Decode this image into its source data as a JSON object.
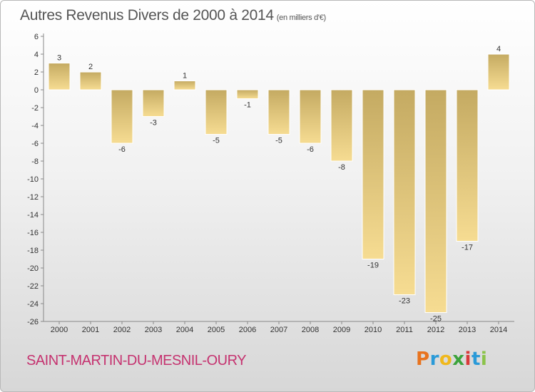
{
  "header": {
    "title": "Autres Revenus Divers de 2000 à 2014",
    "subtitle": "(en milliers d'€)"
  },
  "footer": {
    "commune": "SAINT-MARTIN-DU-MESNIL-OURY",
    "logo_letters": [
      "P",
      "r",
      "o",
      "x",
      "i",
      "t",
      "i"
    ],
    "logo_colors": [
      "#e8731e",
      "#2a9ad8",
      "#f0b81c",
      "#3ca33c",
      "#d93a3a",
      "#2a9ad8",
      "#8bc34a"
    ]
  },
  "chart_data": {
    "type": "bar",
    "title": "Autres Revenus Divers de 2000 à 2014",
    "xlabel": "",
    "ylabel": "",
    "categories": [
      "2000",
      "2001",
      "2002",
      "2003",
      "2004",
      "2005",
      "2006",
      "2007",
      "2008",
      "2009",
      "2010",
      "2011",
      "2012",
      "2013",
      "2014"
    ],
    "values": [
      3,
      2,
      -6,
      -3,
      1,
      -5,
      -1,
      -5,
      -6,
      -8,
      -19,
      -23,
      -25,
      -17,
      4
    ],
    "value_labels": [
      "3",
      "2",
      "-6",
      "-3",
      "1",
      "-5",
      "-1",
      "-5",
      "-6",
      "-8",
      "-19",
      "-23",
      "-25",
      "-17",
      "4"
    ],
    "ylim": [
      -26,
      6
    ],
    "yticks": [
      6,
      4,
      2,
      0,
      -2,
      -4,
      -6,
      -8,
      -10,
      -12,
      -14,
      -16,
      -18,
      -20,
      -22,
      -24,
      -26
    ],
    "grid": false,
    "bar_color_light": "#f6dc92",
    "bar_color_dark": "#c4aa62"
  }
}
